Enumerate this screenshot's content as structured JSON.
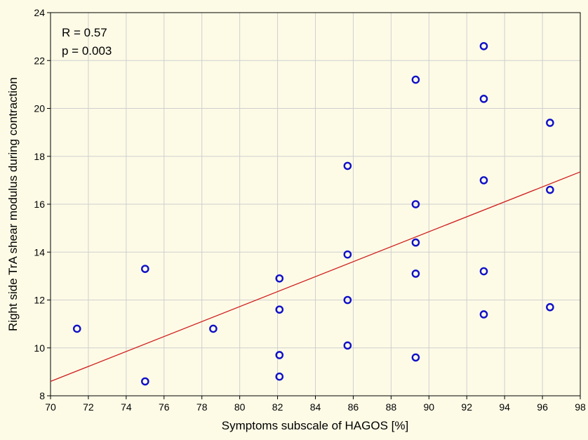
{
  "chart_data": {
    "type": "scatter",
    "xlabel": "Symptoms subscale of HAGOS [%]",
    "ylabel": "Right side TrA shear modulus during contraction",
    "xlim": [
      70,
      98
    ],
    "ylim": [
      8,
      24
    ],
    "x_ticks": [
      70,
      72,
      74,
      76,
      78,
      80,
      82,
      84,
      86,
      88,
      90,
      92,
      94,
      96,
      98
    ],
    "y_ticks": [
      8,
      10,
      12,
      14,
      16,
      18,
      20,
      22,
      24
    ],
    "grid": true,
    "annotations": [
      "R = 0.57",
      "p = 0.003"
    ],
    "points": [
      {
        "x": 71.4,
        "y": 10.8
      },
      {
        "x": 75.0,
        "y": 13.3
      },
      {
        "x": 75.0,
        "y": 8.6
      },
      {
        "x": 78.6,
        "y": 10.8
      },
      {
        "x": 82.1,
        "y": 12.9
      },
      {
        "x": 82.1,
        "y": 11.6
      },
      {
        "x": 82.1,
        "y": 9.7
      },
      {
        "x": 82.1,
        "y": 8.8
      },
      {
        "x": 85.7,
        "y": 17.6
      },
      {
        "x": 85.7,
        "y": 13.9
      },
      {
        "x": 85.7,
        "y": 12.0
      },
      {
        "x": 85.7,
        "y": 10.1
      },
      {
        "x": 89.3,
        "y": 21.2
      },
      {
        "x": 89.3,
        "y": 16.0
      },
      {
        "x": 89.3,
        "y": 14.4
      },
      {
        "x": 89.3,
        "y": 13.1
      },
      {
        "x": 89.3,
        "y": 9.6
      },
      {
        "x": 92.9,
        "y": 22.6
      },
      {
        "x": 92.9,
        "y": 20.4
      },
      {
        "x": 92.9,
        "y": 17.0
      },
      {
        "x": 92.9,
        "y": 13.2
      },
      {
        "x": 92.9,
        "y": 11.4
      },
      {
        "x": 96.4,
        "y": 19.4
      },
      {
        "x": 96.4,
        "y": 16.6
      },
      {
        "x": 96.4,
        "y": 11.7
      }
    ],
    "fit_line": {
      "x": [
        70,
        98
      ],
      "y": [
        8.6,
        17.35
      ]
    },
    "colors": {
      "points": "#1010c8",
      "fit_line": "#d02020",
      "background": "#fdfbe6",
      "grid": "#cfcfcf"
    }
  }
}
